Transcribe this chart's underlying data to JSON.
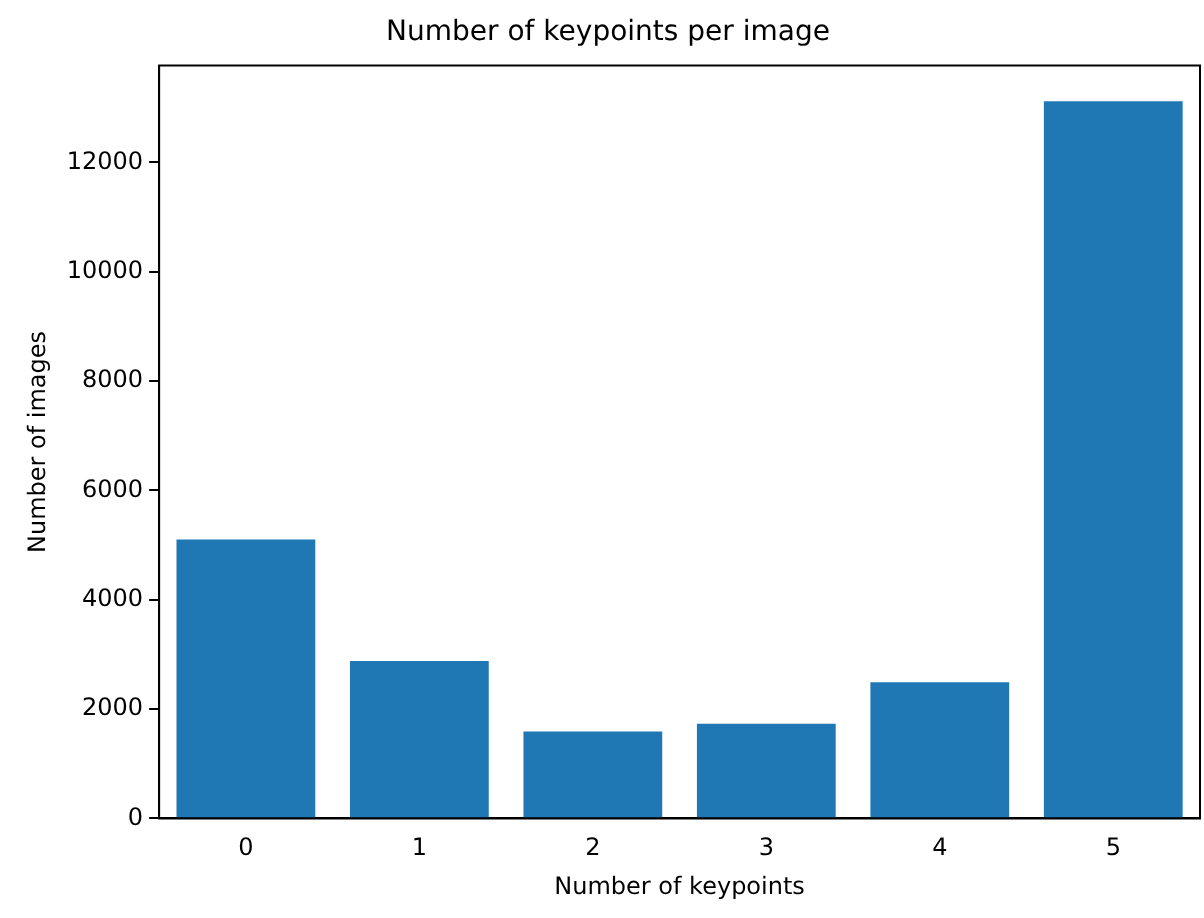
{
  "chart_data": {
    "type": "bar",
    "title": "Number of keypoints per image",
    "xlabel": "Number of keypoints",
    "ylabel": "Number of images",
    "categories": [
      "0",
      "1",
      "2",
      "3",
      "4",
      "5"
    ],
    "values": [
      5100,
      2880,
      1590,
      1730,
      2490,
      13120
    ],
    "color": "#1f77b4",
    "ylim": [
      0,
      13770
    ],
    "yticks": [
      0,
      2000,
      4000,
      6000,
      8000,
      10000,
      12000
    ],
    "grid": false,
    "legend": false
  }
}
